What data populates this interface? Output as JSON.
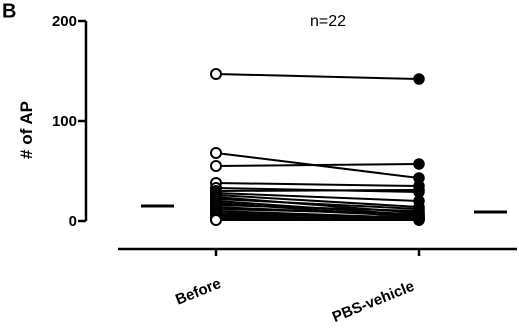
{
  "chart_data": {
    "type": "line",
    "panel_label": "B",
    "annotation": "n=22",
    "ylabel": "# of AP",
    "xlabel": "",
    "ylim": [
      0,
      200
    ],
    "y_ticks": [
      "0",
      "100",
      "200"
    ],
    "y_tick_values": [
      0,
      100,
      200
    ],
    "categories": [
      "Before",
      "PBS-vehicle"
    ],
    "grid": false,
    "colors": {
      "axis": "#000000",
      "line": "#000000",
      "before_fill": "#ffffff",
      "after_fill": "#000000"
    },
    "means": {
      "Before": 15,
      "PBS-vehicle": 9
    },
    "pairs": [
      [
        147,
        142
      ],
      [
        68,
        43
      ],
      [
        55,
        57
      ],
      [
        38,
        35
      ],
      [
        33,
        29
      ],
      [
        30,
        31
      ],
      [
        28,
        20
      ],
      [
        26,
        14
      ],
      [
        24,
        8
      ],
      [
        22,
        12
      ],
      [
        20,
        6
      ],
      [
        18,
        4
      ],
      [
        16,
        10
      ],
      [
        14,
        5
      ],
      [
        12,
        7
      ],
      [
        10,
        3
      ],
      [
        8,
        2
      ],
      [
        6,
        4
      ],
      [
        5,
        1
      ],
      [
        3,
        2
      ],
      [
        2,
        1
      ],
      [
        1,
        1
      ]
    ]
  }
}
